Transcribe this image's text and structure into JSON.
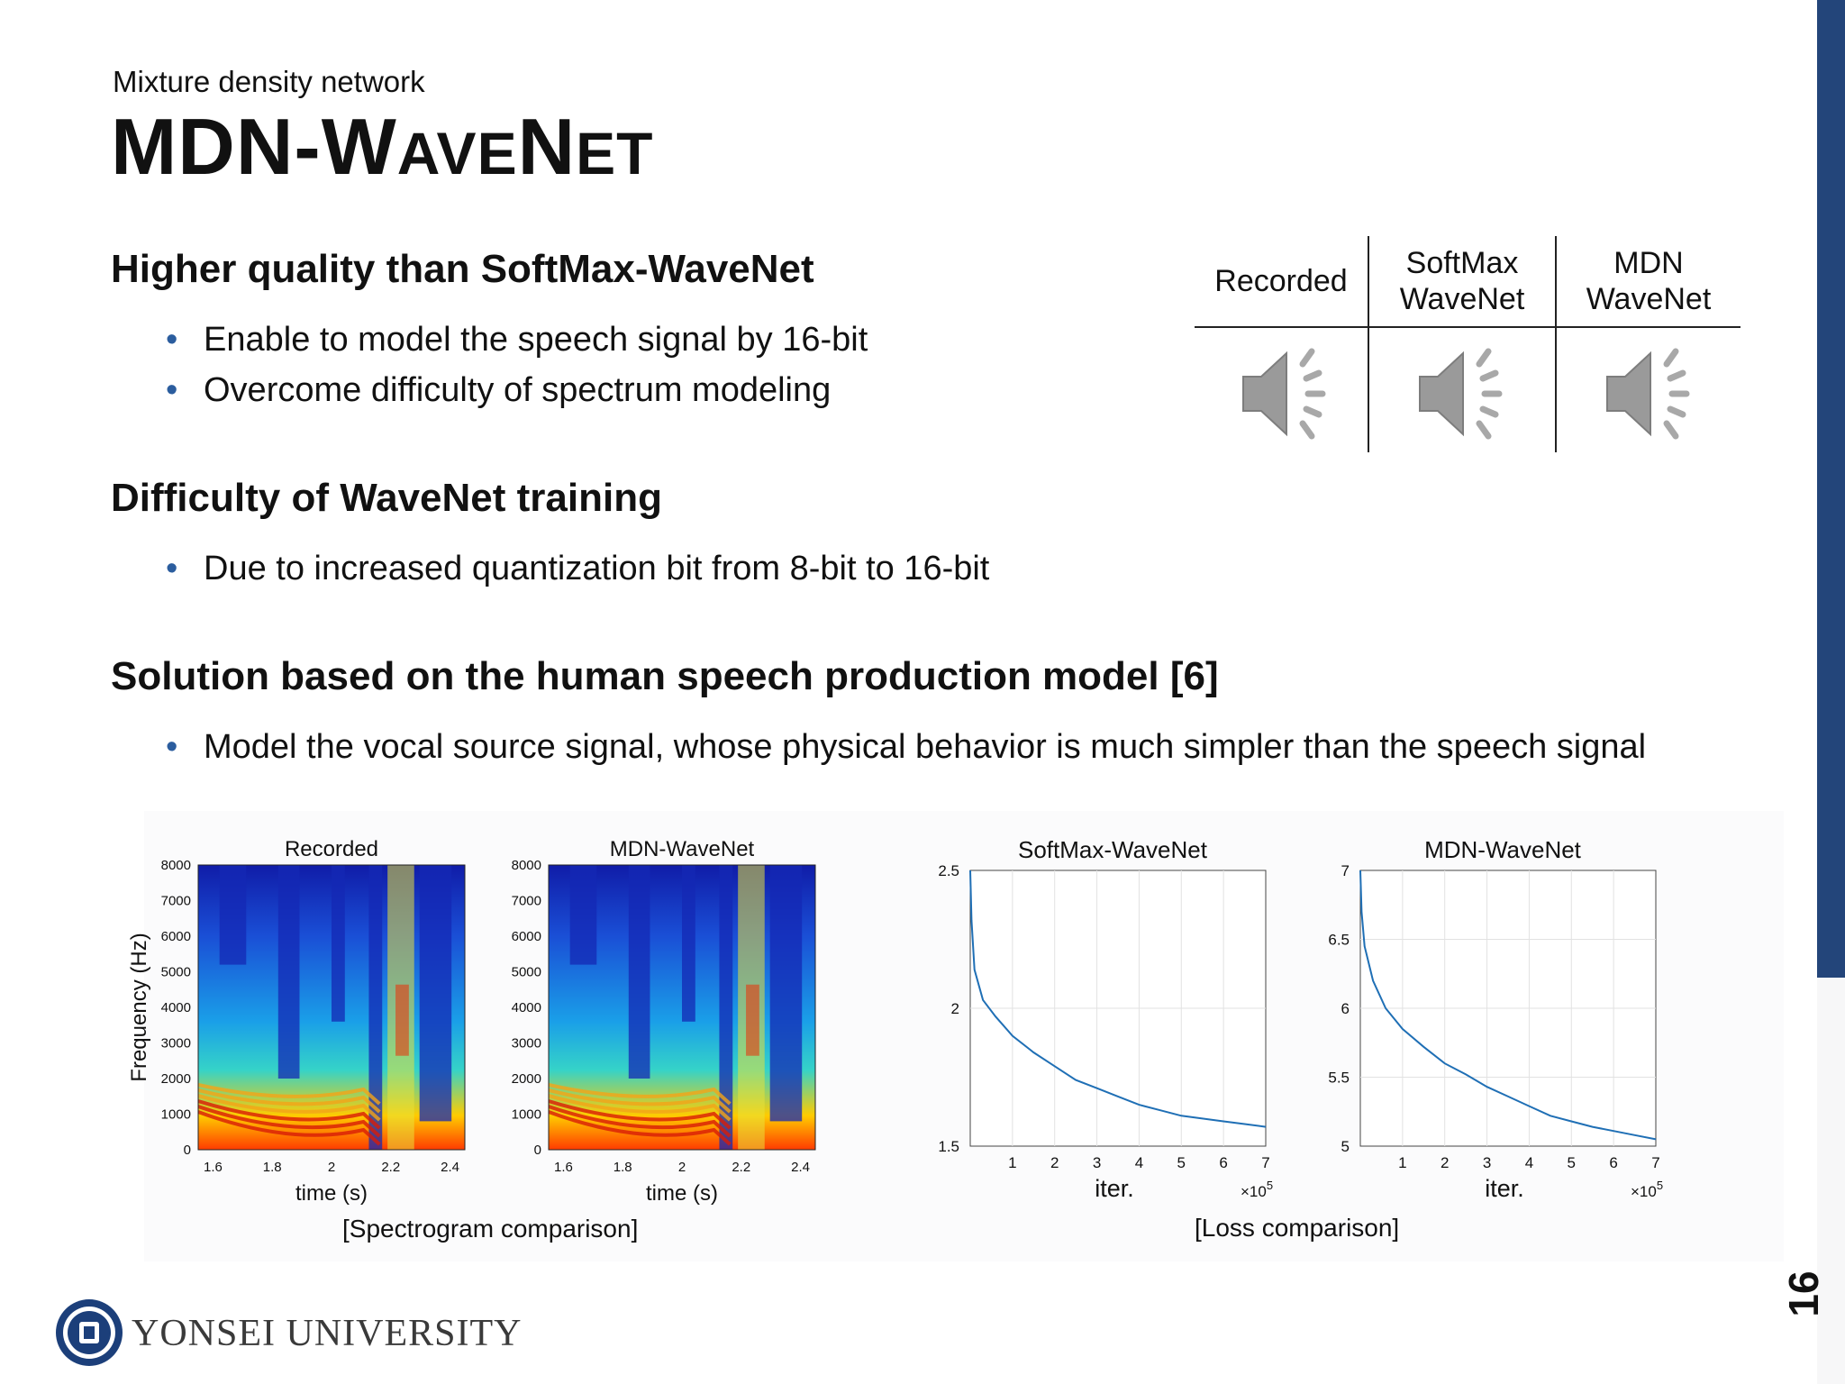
{
  "slide": {
    "subtitle": "Mixture density network",
    "title_parts": [
      "MDN-W",
      "AVE",
      "N",
      "ET"
    ],
    "page_number": "16",
    "colors": {
      "sidebar": "#23457a",
      "bullet": "#2b5d9e",
      "line_series": "#1f6fb5"
    }
  },
  "sections": [
    {
      "heading": "Higher quality than SoftMax-WaveNet",
      "bullets": [
        "Enable to model the speech signal by 16-bit",
        "Overcome difficulty of spectrum modeling"
      ]
    },
    {
      "heading": "Difficulty of WaveNet training",
      "bullets": [
        "Due to increased quantization bit from 8-bit to 16-bit"
      ]
    },
    {
      "heading": "Solution based on the human speech production model [6]",
      "bullets": [
        "Model the vocal source signal, whose physical behavior is much simpler than the speech signal"
      ]
    }
  ],
  "audio_table": {
    "columns": [
      "Recorded",
      "SoftMax\nWaveNet",
      "MDN\nWaveNet"
    ],
    "icons": [
      "speaker-icon",
      "speaker-icon",
      "speaker-icon"
    ]
  },
  "bullet_glyph": "•",
  "spectrogram_caption": "[Spectrogram comparison]",
  "loss_caption": "[Loss comparison]",
  "footer": {
    "university": "YONSEI UNIVERSITY",
    "logo_icon": "university-seal-icon"
  },
  "chart_data": [
    {
      "type": "heatmap",
      "title": "Recorded",
      "xlabel": "time (s)",
      "ylabel": "Frequency (Hz)",
      "xlim": [
        1.55,
        2.45
      ],
      "ylim": [
        0,
        8000
      ],
      "xticks": [
        "1.6",
        "1.8",
        "2",
        "2.2",
        "2.4"
      ],
      "yticks": [
        "0",
        "1000",
        "2000",
        "3000",
        "4000",
        "5000",
        "6000",
        "7000",
        "8000"
      ]
    },
    {
      "type": "heatmap",
      "title": "MDN-WaveNet",
      "xlabel": "time (s)",
      "ylabel": "",
      "xlim": [
        1.55,
        2.45
      ],
      "ylim": [
        0,
        8000
      ],
      "xticks": [
        "1.6",
        "1.8",
        "2",
        "2.2",
        "2.4"
      ],
      "yticks": [
        "0",
        "1000",
        "2000",
        "3000",
        "4000",
        "5000",
        "6000",
        "7000",
        "8000"
      ]
    },
    {
      "type": "line",
      "title": "SoftMax-WaveNet",
      "xlabel": "iter.",
      "x_multiplier": "×10",
      "x_multiplier_exp": "5",
      "xlim": [
        0,
        7
      ],
      "ylim": [
        1.5,
        2.5
      ],
      "grid": true,
      "xticks": [
        "1",
        "2",
        "3",
        "4",
        "5",
        "6",
        "7"
      ],
      "yticks": [
        "1.5",
        "2",
        "2.5"
      ],
      "series": [
        {
          "x": [
            0,
            0.03,
            0.1,
            0.3,
            0.6,
            1,
            1.5,
            2,
            2.5,
            3,
            3.5,
            4,
            4.5,
            5,
            5.5,
            6,
            6.5,
            7
          ],
          "y": [
            2.5,
            2.32,
            2.14,
            2.03,
            1.97,
            1.9,
            1.84,
            1.79,
            1.74,
            1.71,
            1.68,
            1.65,
            1.63,
            1.61,
            1.6,
            1.59,
            1.58,
            1.57
          ]
        }
      ]
    },
    {
      "type": "line",
      "title": "MDN-WaveNet",
      "xlabel": "iter.",
      "x_multiplier": "×10",
      "x_multiplier_exp": "5",
      "xlim": [
        0,
        7
      ],
      "ylim": [
        5,
        7
      ],
      "grid": true,
      "xticks": [
        "1",
        "2",
        "3",
        "4",
        "5",
        "6",
        "7"
      ],
      "yticks": [
        "5",
        "5.5",
        "6",
        "6.5",
        "7"
      ],
      "series": [
        {
          "x": [
            0,
            0.03,
            0.1,
            0.3,
            0.6,
            1,
            1.5,
            2,
            2.5,
            3,
            3.5,
            4,
            4.5,
            5,
            5.5,
            6,
            6.5,
            7
          ],
          "y": [
            7,
            6.7,
            6.45,
            6.2,
            6.0,
            5.85,
            5.72,
            5.6,
            5.52,
            5.43,
            5.36,
            5.29,
            5.22,
            5.18,
            5.14,
            5.11,
            5.08,
            5.05
          ]
        }
      ]
    }
  ]
}
